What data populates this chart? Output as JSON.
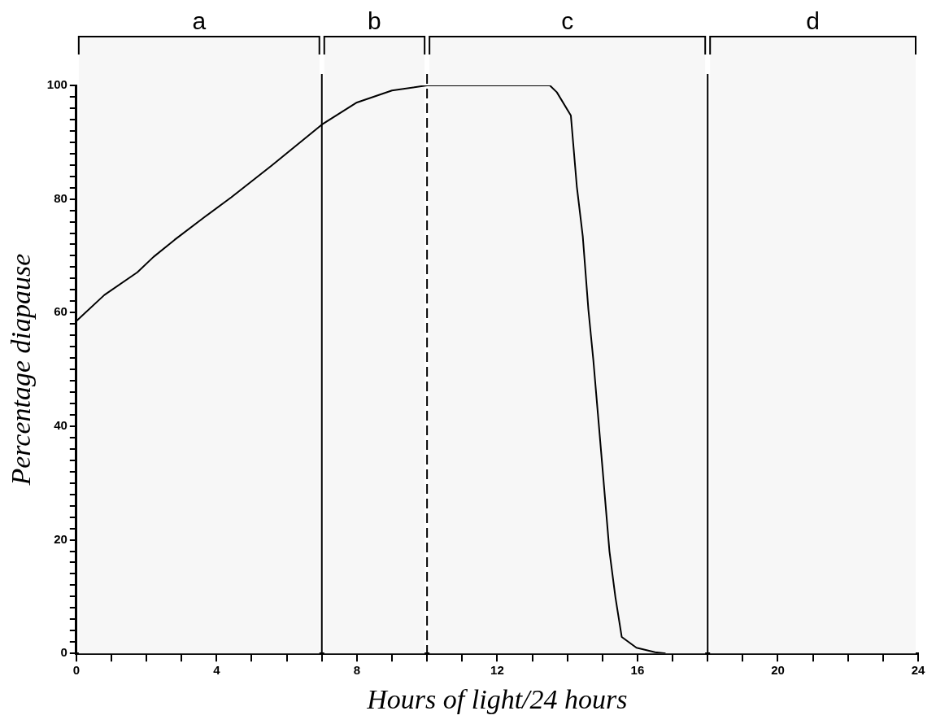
{
  "chart_data": {
    "type": "line",
    "xlabel": "Hours of light/24 hours",
    "ylabel": "Percentage diapause",
    "x": [
      0,
      0.8,
      1.74,
      2.2,
      2.8,
      3.65,
      4.42,
      5.57,
      7,
      8,
      9,
      10,
      13.5,
      13.7,
      14.1,
      14.27,
      14.44,
      14.6,
      14.74,
      14.99,
      15.2,
      15.37,
      15.55,
      15.97,
      16.5,
      16.8
    ],
    "series": [
      {
        "color": "#000000",
        "values": [
          58.5,
          63.1,
          67.1,
          69.8,
          72.8,
          76.8,
          80.3,
          85.9,
          93.1,
          97.0,
          99.1,
          100,
          100,
          98.8,
          94.7,
          82.2,
          73.4,
          60.5,
          51.7,
          33.5,
          18.0,
          9.9,
          2.9,
          1.0,
          0.2,
          0
        ]
      }
    ],
    "xlim": [
      0,
      24
    ],
    "xticks": [
      0,
      {
        "value": 1,
        "label": null
      },
      {
        "value": 2,
        "label": null
      },
      {
        "value": 3,
        "label": null
      },
      4,
      {
        "value": 5,
        "label": null
      },
      {
        "value": 6,
        "label": null
      },
      {
        "value": 7,
        "label": null
      },
      8,
      {
        "value": 9,
        "label": null
      },
      {
        "value": 10,
        "label": null
      },
      {
        "value": 11,
        "label": null
      },
      12,
      {
        "value": 13,
        "label": null
      },
      {
        "value": 14,
        "label": null
      },
      {
        "value": 15,
        "label": null
      },
      16,
      {
        "value": 17,
        "label": null
      },
      {
        "value": 18,
        "label": null
      },
      {
        "value": 19,
        "label": null
      },
      20,
      {
        "value": 21,
        "label": null
      },
      {
        "value": 22,
        "label": null
      },
      {
        "value": 23,
        "label": null
      },
      24
    ],
    "ylim": [
      0,
      100
    ],
    "yticks": [
      0,
      {
        "value": 2,
        "label": null
      },
      {
        "value": 4,
        "label": null
      },
      {
        "value": 6,
        "label": null
      },
      {
        "value": 8,
        "label": null
      },
      {
        "value": 10,
        "label": null
      },
      {
        "value": 12,
        "label": null
      },
      {
        "value": 14,
        "label": null
      },
      {
        "value": 16,
        "label": null
      },
      {
        "value": 18,
        "label": null
      },
      20,
      {
        "value": 22,
        "label": null
      },
      {
        "value": 24,
        "label": null
      },
      {
        "value": 26,
        "label": null
      },
      {
        "value": 28,
        "label": null
      },
      {
        "value": 30,
        "label": null
      },
      {
        "value": 32,
        "label": null
      },
      {
        "value": 34,
        "label": null
      },
      {
        "value": 36,
        "label": null
      },
      {
        "value": 38,
        "label": null
      },
      40,
      {
        "value": 42,
        "label": null
      },
      {
        "value": 44,
        "label": null
      },
      {
        "value": 46,
        "label": null
      },
      {
        "value": 48,
        "label": null
      },
      {
        "value": 50,
        "label": null
      },
      {
        "value": 52,
        "label": null
      },
      {
        "value": 54,
        "label": null
      },
      {
        "value": 56,
        "label": null
      },
      {
        "value": 58,
        "label": null
      },
      60,
      {
        "value": 62,
        "label": null
      },
      {
        "value": 64,
        "label": null
      },
      {
        "value": 66,
        "label": null
      },
      {
        "value": 68,
        "label": null
      },
      {
        "value": 70,
        "label": null
      },
      {
        "value": 72,
        "label": null
      },
      {
        "value": 74,
        "label": null
      },
      {
        "value": 76,
        "label": null
      },
      {
        "value": 78,
        "label": null
      },
      80,
      {
        "value": 82,
        "label": null
      },
      {
        "value": 84,
        "label": null
      },
      {
        "value": 86,
        "label": null
      },
      {
        "value": 88,
        "label": null
      },
      {
        "value": 90,
        "label": null
      },
      {
        "value": 92,
        "label": null
      },
      {
        "value": 94,
        "label": null
      },
      {
        "value": 96,
        "label": null
      },
      {
        "value": 98,
        "label": null
      },
      100
    ],
    "ref_lines": [
      {
        "axis": "x",
        "value": 7,
        "line_style": "solid"
      },
      {
        "axis": "x",
        "value": 10,
        "line_style": "dashed"
      },
      {
        "axis": "x",
        "value": 18,
        "line_style": "solid"
      }
    ],
    "bands": [
      {
        "axis": "x",
        "from": 0,
        "to": 7,
        "label": "a",
        "color": "#f7f7f7"
      },
      {
        "axis": "x",
        "from": 7,
        "to": 10,
        "label": "b",
        "color": "#f7f7f7"
      },
      {
        "axis": "x",
        "from": 10,
        "to": 18,
        "label": "c",
        "color": "#f7f7f7"
      },
      {
        "axis": "x",
        "from": 18,
        "to": 24,
        "label": "d",
        "color": "#f7f7f7"
      }
    ],
    "grid": false,
    "legend": false,
    "marker": "none",
    "line_style": "solid"
  }
}
